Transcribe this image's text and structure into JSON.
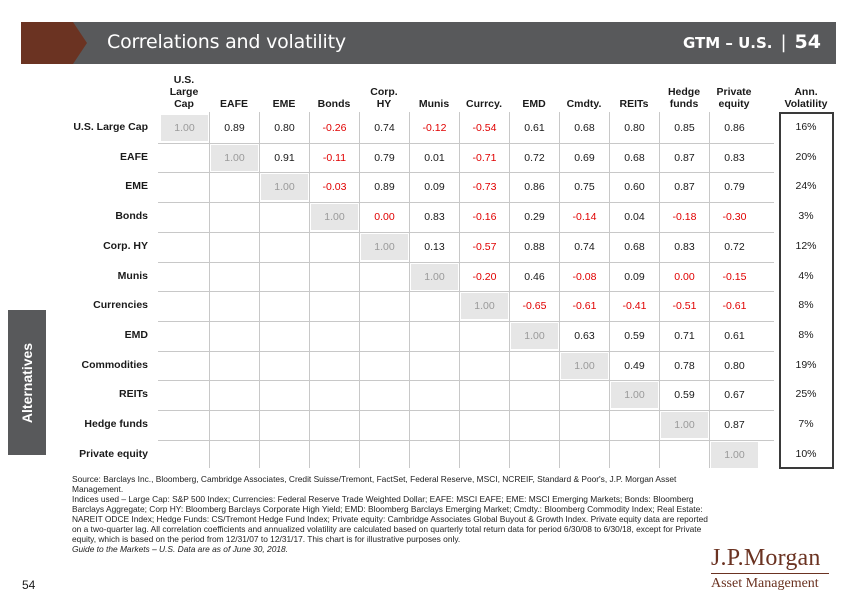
{
  "header": {
    "title": "Correlations and volatility",
    "gtm": "GTM – U.S.",
    "separator": "|",
    "page": "54"
  },
  "side_tab": "Alternatives",
  "columns": [
    "U.S. Large Cap",
    "EAFE",
    "EME",
    "Bonds",
    "Corp. HY",
    "Munis",
    "Currcy.",
    "EMD",
    "Cmdty.",
    "REITs",
    "Hedge funds",
    "Private equity"
  ],
  "vol_header": "Ann. Volatility",
  "rows": [
    {
      "label": "U.S. Large Cap",
      "values": [
        "1.00",
        "0.89",
        "0.80",
        "-0.26",
        "0.74",
        "-0.12",
        "-0.54",
        "0.61",
        "0.68",
        "0.80",
        "0.85",
        "0.86"
      ],
      "vol": "16%"
    },
    {
      "label": "EAFE",
      "values": [
        "1.00",
        "0.91",
        "-0.11",
        "0.79",
        "0.01",
        "-0.71",
        "0.72",
        "0.69",
        "0.68",
        "0.87",
        "0.83"
      ],
      "vol": "20%"
    },
    {
      "label": "EME",
      "values": [
        "1.00",
        "-0.03",
        "0.89",
        "0.09",
        "-0.73",
        "0.86",
        "0.75",
        "0.60",
        "0.87",
        "0.79"
      ],
      "vol": "24%"
    },
    {
      "label": "Bonds",
      "values": [
        "1.00",
        "0.00",
        "0.83",
        "-0.16",
        "0.29",
        "-0.14",
        "0.04",
        "-0.18",
        "-0.30"
      ],
      "vol": "3%"
    },
    {
      "label": "Corp. HY",
      "values": [
        "1.00",
        "0.13",
        "-0.57",
        "0.88",
        "0.74",
        "0.68",
        "0.83",
        "0.72"
      ],
      "vol": "12%"
    },
    {
      "label": "Munis",
      "values": [
        "1.00",
        "-0.20",
        "0.46",
        "-0.08",
        "0.09",
        "0.00",
        "-0.15"
      ],
      "vol": "4%"
    },
    {
      "label": "Currencies",
      "values": [
        "1.00",
        "-0.65",
        "-0.61",
        "-0.41",
        "-0.51",
        "-0.61"
      ],
      "vol": "8%"
    },
    {
      "label": "EMD",
      "values": [
        "1.00",
        "0.63",
        "0.59",
        "0.71",
        "0.61"
      ],
      "vol": "8%"
    },
    {
      "label": "Commodities",
      "values": [
        "1.00",
        "0.49",
        "0.78",
        "0.80"
      ],
      "vol": "19%"
    },
    {
      "label": "REITs",
      "values": [
        "1.00",
        "0.59",
        "0.67"
      ],
      "vol": "25%"
    },
    {
      "label": "Hedge funds",
      "values": [
        "1.00",
        "0.87"
      ],
      "vol": "7%"
    },
    {
      "label": "Private equity",
      "values": [
        "1.00"
      ],
      "vol": "10%"
    }
  ],
  "notes": {
    "source": "Source: Barclays Inc., Bloomberg, Cambridge Associates, Credit Suisse/Tremont, FactSet, Federal Reserve, MSCI, NCREIF, Standard & Poor's, J.P. Morgan Asset Management.",
    "indices": "Indices used – Large Cap: S&P 500 Index; Currencies: Federal Reserve Trade Weighted Dollar; EAFE: MSCI EAFE; EME: MSCI Emerging Markets; Bonds: Bloomberg Barclays Aggregate; Corp HY: Bloomberg Barclays Corporate High Yield; EMD: Bloomberg Barclays Emerging Market; Cmdty.: Bloomberg Commodity Index; Real Estate: NAREIT ODCE Index; Hedge Funds: CS/Tremont Hedge Fund Index; Private equity: Cambridge Associates Global Buyout & Growth Index. Private equity data are reported on a two-quarter lag. All correlation coefficients and annualized volatility are calculated based on quarterly total return data for period 6/30/08 to 6/30/18, except for Private equity, which is based on the period from 12/31/07 to 12/31/17. This chart is for illustrative purposes only.",
    "guide": "Guide to the Markets – U.S. Data are as of June 30, 2018."
  },
  "page_number": "54",
  "logo": {
    "main": "J.P.Morgan",
    "sub": "Asset Management"
  }
}
